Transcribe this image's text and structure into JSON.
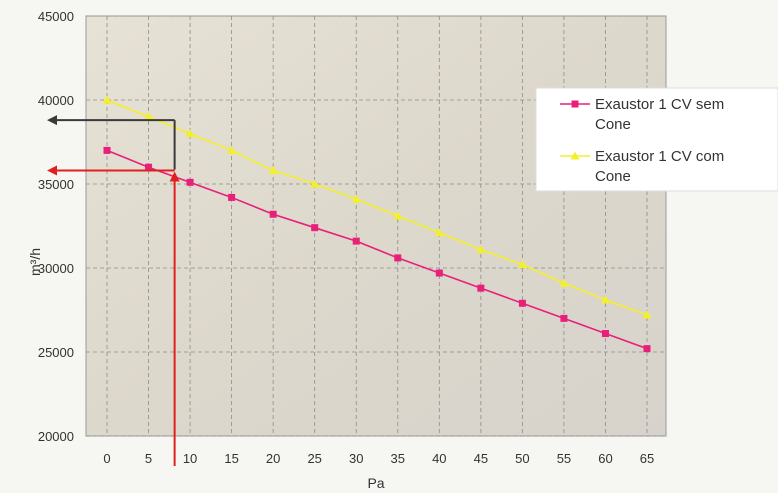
{
  "chart_data": {
    "type": "line",
    "title": "",
    "xlabel": "Pa",
    "ylabel": "m³/h",
    "x": [
      0,
      5,
      10,
      15,
      20,
      25,
      30,
      35,
      40,
      45,
      50,
      55,
      60,
      65
    ],
    "xticks": [
      "0",
      "5",
      "10",
      "15",
      "20",
      "25",
      "30",
      "35",
      "40",
      "45",
      "50",
      "55",
      "60",
      "65"
    ],
    "yticks": [
      "20000",
      "25000",
      "30000",
      "35000",
      "40000",
      "45000"
    ],
    "ylim": [
      20000,
      45000
    ],
    "grid": true,
    "legend_position": "right",
    "series": [
      {
        "name": "Exaustor 1 CV sem Cone",
        "name_lines": [
          "Exaustor 1 CV sem",
          "Cone"
        ],
        "color": "#e8207a",
        "marker": "square",
        "values": [
          37000,
          36000,
          35100,
          34200,
          33200,
          32400,
          31600,
          30600,
          29700,
          28800,
          27900,
          27000,
          26100,
          25200
        ]
      },
      {
        "name": "Exaustor 1 CV com Cone",
        "name_lines": [
          "Exaustor 1 CV com",
          "Cone"
        ],
        "color": "#f3f02a",
        "marker": "triangle",
        "values": [
          40000,
          39000,
          38000,
          37000,
          35800,
          35000,
          34100,
          33100,
          32100,
          31100,
          30200,
          29100,
          28100,
          27200
        ]
      }
    ],
    "annotations": [
      {
        "type": "arrow-guide",
        "color": "#3a3a3a",
        "x_value": 8.5,
        "y_value": 38800
      },
      {
        "type": "arrow-guide",
        "color": "#e0201e",
        "x_value": 8.5,
        "y_value": 35800
      }
    ]
  }
}
